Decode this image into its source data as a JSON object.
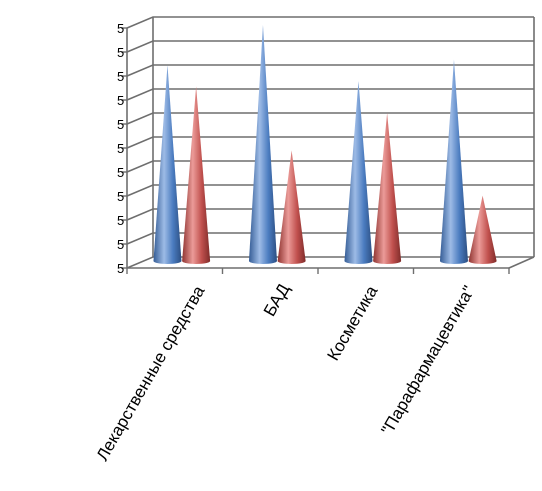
{
  "chart_data": {
    "type": "bar",
    "style": "3d-cone",
    "categories": [
      "Лекарственные средства",
      "БАД",
      "Косметика",
      "\"Парафармацевтика\""
    ],
    "series": [
      {
        "values": [
          0.72,
          0.87,
          0.66,
          0.74
        ],
        "color": "#4a7bbf"
      },
      {
        "values": [
          0.64,
          0.4,
          0.54,
          0.23
        ],
        "color": "#c0504d"
      }
    ],
    "ylim": [
      0,
      0.9
    ],
    "grid": true,
    "legend": "none"
  }
}
